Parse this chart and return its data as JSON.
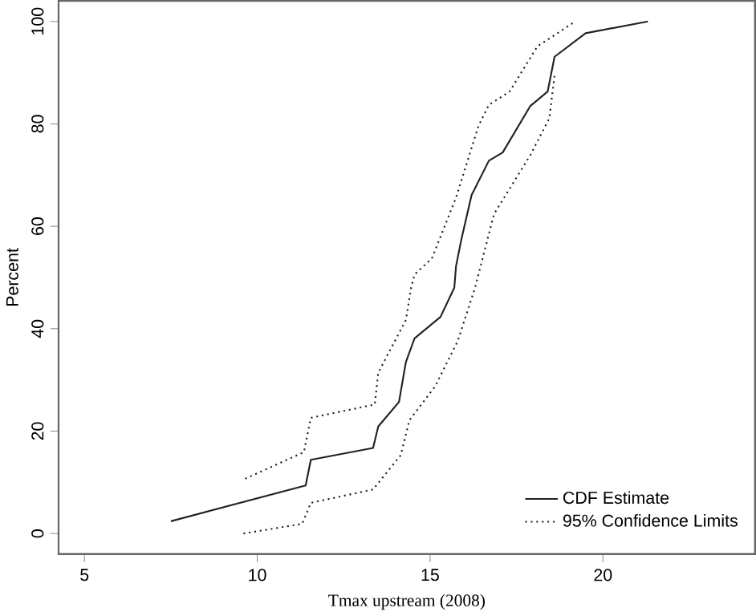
{
  "chart_data": {
    "type": "line",
    "xlabel": "Tmax upstream (2008)",
    "ylabel": "Percent",
    "xlim": [
      4.25,
      24.4
    ],
    "ylim": [
      -4,
      104
    ],
    "xticks": [
      5,
      10,
      15,
      20
    ],
    "yticks": [
      0,
      20,
      40,
      60,
      80,
      100
    ],
    "legend": "bottom right",
    "grid": false,
    "marker": "none",
    "series": [
      {
        "name": "CDF Estimate",
        "color": "#222222",
        "line_style": "solid",
        "x": [
          7.5,
          11.4,
          11.55,
          13.35,
          13.5,
          14.1,
          14.3,
          14.55,
          15.3,
          15.7,
          15.75,
          15.9,
          16.2,
          16.7,
          17.1,
          17.9,
          18.4,
          18.6,
          19.5,
          21.3
        ],
        "values": [
          2.4,
          9.4,
          14.4,
          16.7,
          20.9,
          25.7,
          33.5,
          38.1,
          42.3,
          48,
          52.2,
          57.3,
          66.1,
          72.8,
          74.4,
          83.5,
          86.3,
          93.1,
          97.7,
          100
        ]
      },
      {
        "name": "95% Confidence Limits",
        "color": "#222222",
        "line_style": "dotted",
        "x": [
          9.65,
          11.35,
          11.55,
          13.4,
          13.5,
          14.3,
          14.45,
          14.55,
          15.05,
          15.75,
          16.4,
          16.7,
          17.3,
          18.1,
          19.2
        ],
        "values": [
          10.7,
          15.9,
          22.6,
          25.2,
          31.4,
          41.7,
          48,
          50.6,
          53.7,
          65.6,
          79.6,
          83.7,
          86.3,
          95.1,
          100
        ]
      },
      {
        "color": "#222222",
        "line_style": "dotted",
        "x": [
          9.6,
          11.3,
          11.55,
          13.35,
          14.15,
          14.4,
          15.15,
          15.8,
          16.3,
          16.85,
          17.9,
          18.45,
          18.6
        ],
        "values": [
          0,
          1.9,
          6,
          8.6,
          15.3,
          22.1,
          28.8,
          37.6,
          48,
          62.4,
          73.9,
          81.1,
          89.4
        ]
      }
    ]
  }
}
